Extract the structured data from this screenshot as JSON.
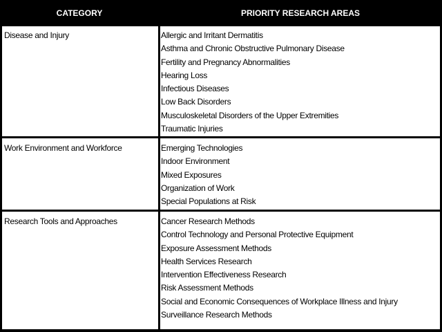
{
  "header": {
    "category": "CATEGORY",
    "areas": "PRIORITY RESEARCH AREAS"
  },
  "rows": [
    {
      "category": "Disease and Injury",
      "areas": [
        "Allergic and Irritant Dermatitis",
        "Asthma and Chronic Obstructive Pulmonary Disease",
        "Fertility and Pregnancy Abnormalities",
        "Hearing Loss",
        "Infectious Diseases",
        "Low Back Disorders",
        "Musculoskeletal Disorders of the Upper Extremities",
        "Traumatic Injuries"
      ]
    },
    {
      "category": "Work Environment and Workforce",
      "areas": [
        "Emerging Technologies",
        "Indoor Environment",
        "Mixed Exposures",
        "Organization of Work",
        "Special Populations at Risk"
      ]
    },
    {
      "category": "Research Tools and Approaches",
      "areas": [
        "Cancer Research Methods",
        "Control Technology and Personal Protective Equipment",
        "Exposure Assessment Methods",
        "Health Services Research",
        "Intervention Effectiveness Research",
        "Risk Assessment Methods",
        "Social and Economic Consequences of Workplace Illness and Injury",
        "Surveillance Research Methods"
      ]
    }
  ]
}
